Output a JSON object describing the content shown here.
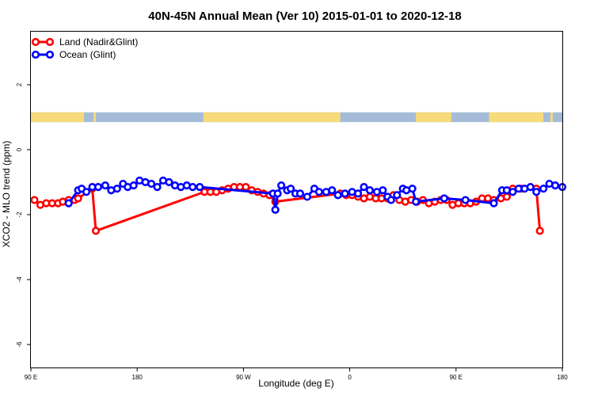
{
  "chart_data": {
    "type": "line",
    "title": "40N-45N Annual Mean (Ver 10)   2015-01-01 to 2020-12-18",
    "xlabel": "Longitude (deg E)",
    "ylabel": "XCO2 - MLO trend (ppm)",
    "x_domain_deg_east": [
      90,
      540
    ],
    "xlim": [
      90,
      540
    ],
    "ylim": [
      -6.5,
      4.5
    ],
    "x_ticks": [
      {
        "value": 90,
        "label": "90 E"
      },
      {
        "value": 180,
        "label": "180"
      },
      {
        "value": 270,
        "label": "90 W"
      },
      {
        "value": 360,
        "label": "0"
      },
      {
        "value": 450,
        "label": "90 E"
      },
      {
        "value": 540,
        "label": "180"
      }
    ],
    "y_ticks": [
      {
        "value": 2,
        "label": "2"
      },
      {
        "value": 0,
        "label": "0"
      },
      {
        "value": -2,
        "label": "-2"
      },
      {
        "value": -4,
        "label": "-4"
      },
      {
        "value": -6,
        "label": "-6"
      }
    ],
    "legend_position": "top-left",
    "land_ocean_strip": {
      "y_range": [
        0.85,
        1.15
      ],
      "ocean_color": "#a4bcd8",
      "land_color": "#f7da7a",
      "land_segments": [
        [
          90,
          135
        ],
        [
          143,
          145
        ],
        [
          236,
          352
        ],
        [
          416,
          446
        ],
        [
          478,
          524
        ],
        [
          530,
          532
        ]
      ]
    },
    "series": [
      {
        "name": "Land (Nadir&Glint)",
        "color": "#ff0000",
        "x": [
          93,
          98,
          103,
          108,
          113,
          117,
          122,
          127,
          130,
          142,
          145,
          237,
          242,
          247,
          252,
          257,
          262,
          267,
          272,
          277,
          282,
          287,
          292,
          297,
          352,
          357,
          362,
          367,
          372,
          377,
          382,
          387,
          392,
          397,
          402,
          407,
          412,
          417,
          422,
          427,
          432,
          437,
          442,
          447,
          452,
          457,
          462,
          467,
          472,
          477,
          482,
          488,
          493,
          498,
          505,
          518,
          521
        ],
        "y": [
          -1.55,
          -1.7,
          -1.65,
          -1.65,
          -1.65,
          -1.6,
          -1.55,
          -1.55,
          -1.5,
          -1.2,
          -2.5,
          -1.3,
          -1.3,
          -1.3,
          -1.25,
          -1.2,
          -1.15,
          -1.15,
          -1.15,
          -1.25,
          -1.3,
          -1.35,
          -1.4,
          -1.6,
          -1.35,
          -1.4,
          -1.4,
          -1.45,
          -1.5,
          -1.45,
          -1.5,
          -1.5,
          -1.5,
          -1.4,
          -1.55,
          -1.6,
          -1.55,
          -1.6,
          -1.55,
          -1.65,
          -1.6,
          -1.55,
          -1.55,
          -1.7,
          -1.65,
          -1.65,
          -1.65,
          -1.6,
          -1.5,
          -1.5,
          -1.55,
          -1.5,
          -1.45,
          -1.2,
          -1.2,
          -1.2,
          -2.5
        ]
      },
      {
        "name": "Ocean (Glint)",
        "color": "#0000ff",
        "x": [
          122,
          130,
          133,
          137,
          142,
          147,
          153,
          158,
          163,
          168,
          172,
          177,
          182,
          187,
          192,
          197,
          202,
          207,
          212,
          217,
          222,
          227,
          233,
          295,
          297,
          299,
          302,
          307,
          310,
          314,
          318,
          324,
          330,
          334,
          340,
          345,
          350,
          356,
          362,
          367,
          372,
          377,
          383,
          388,
          392,
          395,
          400,
          405,
          408,
          413,
          416,
          440,
          458,
          482,
          489,
          493,
          498,
          503,
          508,
          513,
          518,
          524,
          529,
          534,
          540
        ],
        "y": [
          -1.65,
          -1.25,
          -1.2,
          -1.3,
          -1.15,
          -1.15,
          -1.1,
          -1.25,
          -1.2,
          -1.05,
          -1.15,
          -1.1,
          -0.95,
          -1.0,
          -1.05,
          -1.15,
          -0.95,
          -1.0,
          -1.1,
          -1.15,
          -1.1,
          -1.15,
          -1.15,
          -1.35,
          -1.85,
          -1.35,
          -1.1,
          -1.25,
          -1.2,
          -1.35,
          -1.35,
          -1.45,
          -1.2,
          -1.3,
          -1.3,
          -1.25,
          -1.4,
          -1.35,
          -1.3,
          -1.35,
          -1.15,
          -1.25,
          -1.3,
          -1.25,
          -1.45,
          -1.55,
          -1.4,
          -1.2,
          -1.25,
          -1.2,
          -1.6,
          -1.5,
          -1.55,
          -1.65,
          -1.25,
          -1.25,
          -1.3,
          -1.2,
          -1.2,
          -1.15,
          -1.3,
          -1.2,
          -1.05,
          -1.1,
          -1.15
        ]
      }
    ]
  }
}
